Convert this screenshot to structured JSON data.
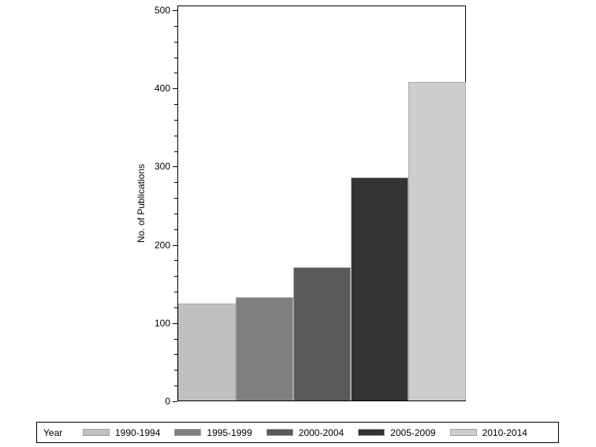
{
  "chart_data": {
    "type": "bar",
    "title": "",
    "xlabel": "",
    "ylabel": "No. of Publications",
    "ylim": [
      0,
      500
    ],
    "yticks": [
      0,
      100,
      200,
      300,
      400,
      500
    ],
    "grid": false,
    "legend_position": "bottom",
    "legend_title": "Year",
    "categories": [
      "1990-1994",
      "1995-1999",
      "2000-2004",
      "2005-2009",
      "2010-2014"
    ],
    "values": [
      124,
      132,
      170,
      285,
      407
    ],
    "colors": [
      "#c0c0c0",
      "#808080",
      "#5a5a5a",
      "#333333",
      "#cdcdcd"
    ]
  },
  "axis": {
    "ylabel": "No. of Publications",
    "ticks": [
      "0",
      "100",
      "200",
      "300",
      "400",
      "500"
    ]
  },
  "legend": {
    "title": "Year",
    "items": [
      {
        "label": "1990-1994",
        "color": "#c0c0c0"
      },
      {
        "label": "1995-1999",
        "color": "#808080"
      },
      {
        "label": "2000-2004",
        "color": "#5a5a5a"
      },
      {
        "label": "2005-2009",
        "color": "#333333"
      },
      {
        "label": "2010-2014",
        "color": "#cdcdcd"
      }
    ]
  }
}
